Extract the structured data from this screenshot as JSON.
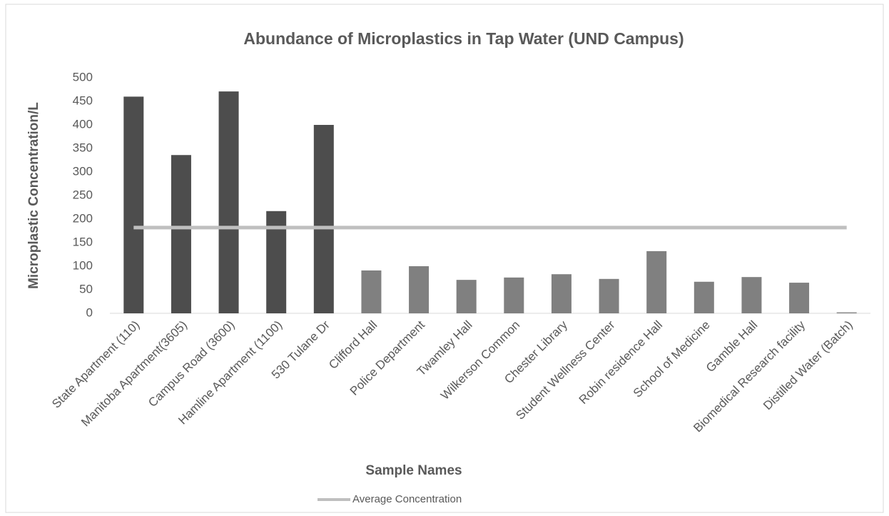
{
  "chart_data": {
    "type": "bar",
    "title": "Abundance of Microplastics in Tap Water (UND Campus)",
    "x_label": "Sample Names",
    "y_label": "Microplastic Concentration/L",
    "categories": [
      "State Apartment (110)",
      "Manitoba Apartment(3605)",
      "Campus Road (3600)",
      "Hamline Apartment (1100)",
      "530 Tulane Dr",
      "Clifford Hall",
      "Police Department",
      "Twamley Hall",
      "Wilkerson Common",
      "Chester Library",
      "Student Wellness Center",
      "Robin residence Hall",
      "School of Medicine",
      "Gamble Hall",
      "Biomedical Research facility",
      "Distilled Water (Batch)"
    ],
    "values": [
      460,
      336,
      471,
      217,
      400,
      91,
      100,
      71,
      76,
      83,
      73,
      132,
      67,
      77,
      65,
      2
    ],
    "colors": [
      "#4d4d4d",
      "#4d4d4d",
      "#4d4d4d",
      "#4d4d4d",
      "#4d4d4d",
      "#808080",
      "#808080",
      "#808080",
      "#808080",
      "#808080",
      "#808080",
      "#808080",
      "#808080",
      "#808080",
      "#808080",
      "#808080"
    ],
    "average": {
      "name": "Average Concentration",
      "value": 182,
      "color": "#bfbfbf"
    },
    "ylim": [
      0,
      500
    ],
    "yticks": [
      0,
      50,
      100,
      150,
      200,
      250,
      300,
      350,
      400,
      450,
      500
    ],
    "grid": false,
    "legend": "bottom"
  }
}
